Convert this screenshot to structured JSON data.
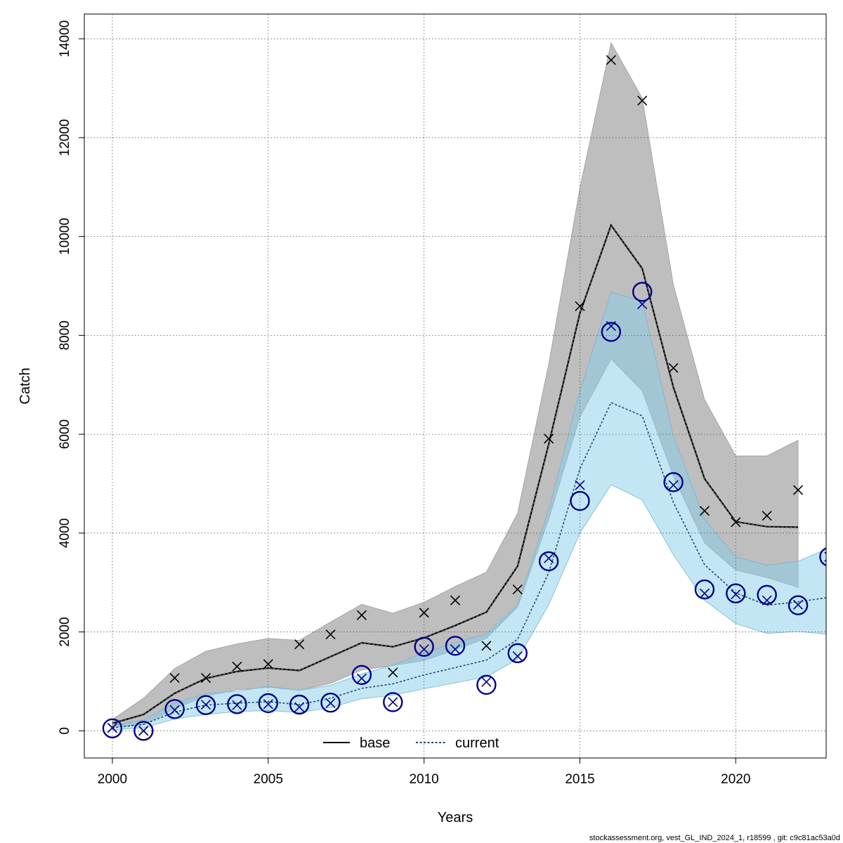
{
  "chart_data": {
    "type": "line",
    "xlabel": "Years",
    "ylabel": "Catch",
    "xlim": [
      1999.1,
      2022.9
    ],
    "ylim": [
      -550,
      14500
    ],
    "x_ticks": [
      2000,
      2005,
      2010,
      2015,
      2020
    ],
    "y_ticks": [
      0,
      2000,
      4000,
      6000,
      8000,
      10000,
      12000,
      14000
    ],
    "grid": true,
    "legend_position": "bottom-center",
    "colors": {
      "base": "#000000",
      "base_band": "#bebebe",
      "current": "#00008b",
      "current_line": "#1e4a6e",
      "current_band": "#87ceeb"
    },
    "legend": [
      {
        "label": "base",
        "style": "solid"
      },
      {
        "label": "current",
        "style": "dashed"
      }
    ],
    "series": [
      {
        "name": "base",
        "years": [
          2000,
          2001,
          2002,
          2003,
          2004,
          2005,
          2006,
          2007,
          2008,
          2009,
          2010,
          2011,
          2012,
          2013,
          2014,
          2015,
          2016,
          2017,
          2018,
          2019,
          2020,
          2021,
          2022
        ],
        "fit": [
          150,
          330,
          760,
          1060,
          1200,
          1270,
          1220,
          1500,
          1780,
          1700,
          1880,
          2130,
          2400,
          3330,
          5800,
          8450,
          10230,
          9350,
          6950,
          5100,
          4230,
          4130,
          4120
        ],
        "lower": [
          80,
          120,
          450,
          700,
          830,
          880,
          820,
          960,
          1230,
          1320,
          1420,
          1640,
          1870,
          2500,
          4280,
          6350,
          7520,
          6880,
          5150,
          3800,
          3250,
          3100,
          2900
        ],
        "upper": [
          230,
          660,
          1260,
          1610,
          1760,
          1870,
          1830,
          2200,
          2560,
          2380,
          2600,
          2920,
          3210,
          4400,
          7420,
          10980,
          13920,
          12800,
          9020,
          6700,
          5560,
          5560,
          5880
        ],
        "observed": [
          60,
          0,
          1070,
          1070,
          1300,
          1350,
          1750,
          1950,
          2340,
          1180,
          2390,
          2640,
          1720,
          2860,
          5910,
          8590,
          13570,
          12750,
          7340,
          4450,
          4220,
          4350,
          4870
        ]
      },
      {
        "name": "current",
        "years": [
          2000,
          2001,
          2002,
          2003,
          2004,
          2005,
          2006,
          2007,
          2008,
          2009,
          2010,
          2011,
          2012,
          2013,
          2014,
          2015,
          2016,
          2017,
          2018,
          2019,
          2020,
          2021,
          2022,
          2023
        ],
        "fit": [
          60,
          130,
          380,
          520,
          560,
          590,
          530,
          660,
          860,
          950,
          1130,
          1280,
          1430,
          1850,
          3200,
          5300,
          6640,
          6370,
          4620,
          3360,
          2790,
          2540,
          2610,
          2700
        ],
        "lower": [
          20,
          60,
          240,
          330,
          390,
          410,
          370,
          470,
          650,
          720,
          850,
          970,
          1090,
          1450,
          2550,
          4000,
          4980,
          4670,
          3560,
          2640,
          2170,
          1970,
          2010,
          1950
        ],
        "upper": [
          100,
          220,
          560,
          750,
          800,
          900,
          820,
          920,
          1150,
          1330,
          1580,
          1780,
          1960,
          2550,
          4470,
          6870,
          8870,
          8690,
          5960,
          4280,
          3520,
          3350,
          3430,
          3700
        ],
        "observed": [
          60,
          0,
          420,
          530,
          520,
          540,
          480,
          560,
          1060,
          580,
          1650,
          1650,
          990,
          1510,
          3490,
          4970,
          8190,
          8630,
          4970,
          2780,
          2760,
          2640,
          2550,
          3520
        ],
        "estimated": [
          50,
          0,
          440,
          520,
          540,
          560,
          530,
          570,
          1130,
          580,
          1700,
          1720,
          930,
          1570,
          3430,
          4650,
          8070,
          8880,
          5030,
          2860,
          2780,
          2750,
          2540,
          3520
        ]
      }
    ],
    "footer": "stockassessment.org, vest_GL_IND_2024_1, r18599 , git: c9c81ac53a0d"
  }
}
